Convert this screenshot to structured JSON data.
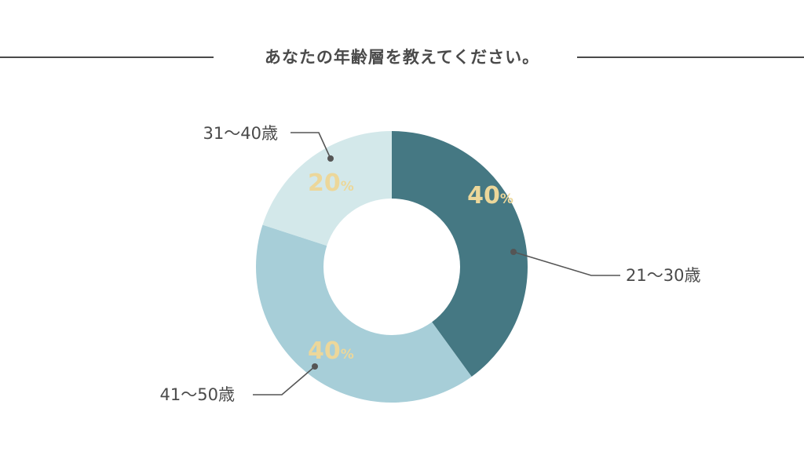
{
  "title": "あなたの年齢層を教えてください。",
  "colors": {
    "title_rule": "#4a4a4a",
    "leader": "#555555",
    "percent_label": "#ecd79a"
  },
  "chart_data": {
    "type": "pie",
    "variant": "donut",
    "title": "あなたの年齢層を教えてください。",
    "unit": "%",
    "slices": [
      {
        "label": "21〜30歳",
        "value": 40,
        "display": "40",
        "color": "#457883"
      },
      {
        "label": "41〜50歳",
        "value": 40,
        "display": "40",
        "color": "#a7ced8"
      },
      {
        "label": "31〜40歳",
        "value": 20,
        "display": "20",
        "color": "#d3e8ea"
      }
    ],
    "start": "12 o'clock",
    "direction": "clockwise",
    "legend": "none"
  }
}
